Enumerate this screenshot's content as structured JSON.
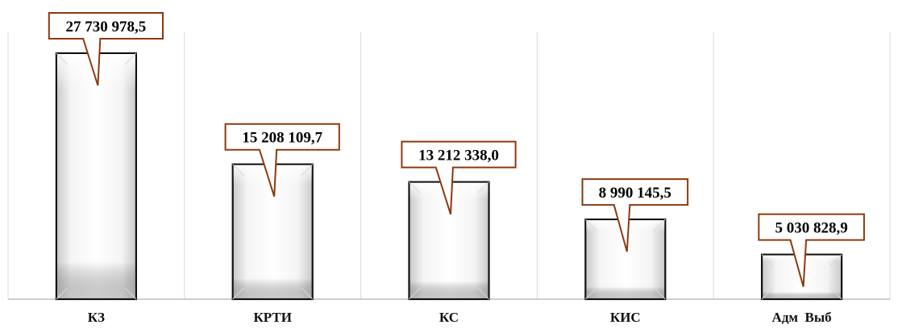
{
  "chart_data": {
    "type": "bar",
    "categories": [
      "КЗ",
      "КРТИ",
      "КС",
      "КИС",
      "Адм  Выб"
    ],
    "values": [
      27730978.5,
      15208109.7,
      13212338.0,
      8990145.5,
      5030828.9
    ],
    "data_labels": [
      "27 730 978,5",
      "15 208 109,7",
      "13 212 338,0",
      "8 990 145,5",
      "5 030 828,9"
    ],
    "ylim": [
      0,
      27730978.5
    ],
    "grid": "vertical separators",
    "colors": {
      "bar_fill_center": "#ffffff",
      "bar_fill_edge": "#cfcfcf",
      "bar_stroke": "#111111",
      "label_border": "#8b3a0f",
      "grid": "#d9d9d9",
      "axis": "#bfbfbf"
    }
  }
}
